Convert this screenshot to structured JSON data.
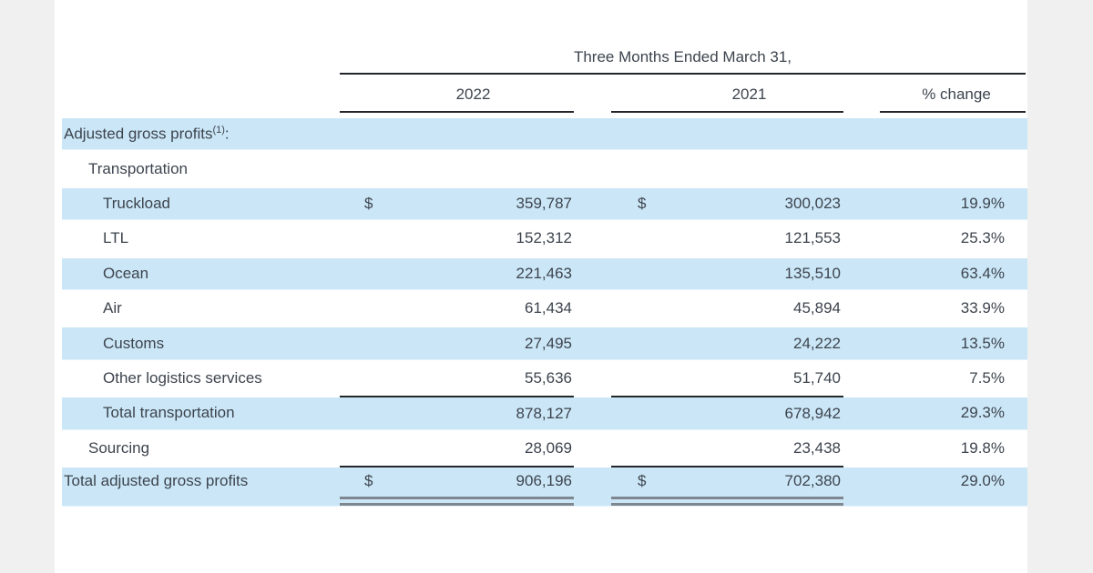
{
  "colors": {
    "row_highlight": "#cbe7f7",
    "text": "#3d444e",
    "rule": "#23262a",
    "double_rule": "#7e8790",
    "side_strip": "#f0f0f1",
    "background": "#ffffff"
  },
  "table": {
    "period_header": "Three Months Ended March 31,",
    "col_2022": "2022",
    "col_2021": "2021",
    "col_pct": "% change",
    "rows": [
      {
        "label": "Adjusted gross profits",
        "sup": "(1)",
        "suffix": ":"
      },
      {
        "label": "Transportation"
      },
      {
        "label": "Truckload",
        "d1": "$",
        "v1": "359,787",
        "d2": "$",
        "v2": "300,023",
        "pct": "19.9%"
      },
      {
        "label": "LTL",
        "v1": "152,312",
        "v2": "121,553",
        "pct": "25.3%"
      },
      {
        "label": "Ocean",
        "v1": "221,463",
        "v2": "135,510",
        "pct": "63.4%"
      },
      {
        "label": "Air",
        "v1": "61,434",
        "v2": "45,894",
        "pct": "33.9%"
      },
      {
        "label": "Customs",
        "v1": "27,495",
        "v2": "24,222",
        "pct": "13.5%"
      },
      {
        "label": "Other logistics services",
        "v1": "55,636",
        "v2": "51,740",
        "pct": "7.5%"
      },
      {
        "label": "Total transportation",
        "v1": "878,127",
        "v2": "678,942",
        "pct": "29.3%"
      },
      {
        "label": "Sourcing",
        "v1": "28,069",
        "v2": "23,438",
        "pct": "19.8%"
      },
      {
        "label": "Total adjusted gross profits",
        "d1": "$",
        "v1": "906,196",
        "d2": "$",
        "v2": "702,380",
        "pct": "29.0%"
      }
    ]
  }
}
